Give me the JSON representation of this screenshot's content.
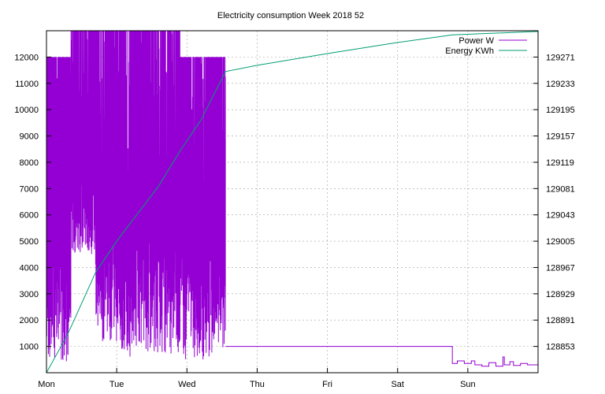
{
  "chart_data": {
    "type": "line",
    "title": "Electricity consumption Week 2018 52",
    "x_ticks": [
      "Mon",
      "Tue",
      "Wed",
      "Thu",
      "Fri",
      "Sat",
      "Sun"
    ],
    "xlim_days": [
      0,
      7
    ],
    "y_left": {
      "ylim": [
        0,
        13000
      ],
      "ticks": [
        1000,
        2000,
        3000,
        4000,
        5000,
        6000,
        7000,
        8000,
        9000,
        10000,
        11000,
        12000
      ]
    },
    "y_right": {
      "ylim": [
        128815,
        129309
      ],
      "ticks": [
        128853,
        128891,
        128929,
        128967,
        129005,
        129043,
        129081,
        129119,
        129157,
        129195,
        129233,
        129271
      ]
    },
    "grid": true,
    "legend_position": "top-right",
    "series": [
      {
        "name": "Power W",
        "axis": "left",
        "color": "#9400d3",
        "segments": [
          {
            "from_day": 0.0,
            "to_day": 0.35,
            "low": 400,
            "high": 12000
          },
          {
            "from_day": 0.35,
            "to_day": 0.7,
            "low": 4500,
            "high": 13000
          },
          {
            "from_day": 0.7,
            "to_day": 1.0,
            "low": 1200,
            "high": 13000
          },
          {
            "from_day": 1.0,
            "to_day": 1.35,
            "low": 600,
            "high": 13000
          },
          {
            "from_day": 1.35,
            "to_day": 1.9,
            "low": 700,
            "high": 13000
          },
          {
            "from_day": 1.9,
            "to_day": 2.55,
            "low": 500,
            "high": 12000
          }
        ],
        "points": [
          {
            "x": 2.55,
            "y": 1000
          },
          {
            "x": 5.78,
            "y": 1000
          },
          {
            "x": 5.78,
            "y": 350
          },
          {
            "x": 5.85,
            "y": 350
          },
          {
            "x": 5.85,
            "y": 450
          },
          {
            "x": 5.95,
            "y": 450
          },
          {
            "x": 5.95,
            "y": 350
          },
          {
            "x": 6.05,
            "y": 350
          },
          {
            "x": 6.05,
            "y": 450
          },
          {
            "x": 6.1,
            "y": 450
          },
          {
            "x": 6.1,
            "y": 300
          },
          {
            "x": 6.2,
            "y": 300
          },
          {
            "x": 6.2,
            "y": 250
          },
          {
            "x": 6.3,
            "y": 250
          },
          {
            "x": 6.3,
            "y": 380
          },
          {
            "x": 6.4,
            "y": 380
          },
          {
            "x": 6.4,
            "y": 250
          },
          {
            "x": 6.5,
            "y": 250
          },
          {
            "x": 6.5,
            "y": 600
          },
          {
            "x": 6.52,
            "y": 600
          },
          {
            "x": 6.52,
            "y": 300
          },
          {
            "x": 6.6,
            "y": 300
          },
          {
            "x": 6.6,
            "y": 420
          },
          {
            "x": 6.65,
            "y": 420
          },
          {
            "x": 6.65,
            "y": 280
          },
          {
            "x": 6.75,
            "y": 280
          },
          {
            "x": 6.75,
            "y": 350
          },
          {
            "x": 6.85,
            "y": 350
          },
          {
            "x": 6.85,
            "y": 300
          },
          {
            "x": 7.0,
            "y": 300
          }
        ]
      },
      {
        "name": "Energy KWh",
        "axis": "right",
        "color": "#009e73",
        "points": [
          {
            "x": 0.0,
            "y": 128815
          },
          {
            "x": 0.3,
            "y": 128870
          },
          {
            "x": 0.7,
            "y": 128960
          },
          {
            "x": 1.0,
            "y": 129005
          },
          {
            "x": 1.3,
            "y": 129045
          },
          {
            "x": 1.6,
            "y": 129085
          },
          {
            "x": 1.9,
            "y": 129135
          },
          {
            "x": 2.2,
            "y": 129180
          },
          {
            "x": 2.55,
            "y": 129250
          },
          {
            "x": 3.0,
            "y": 129259
          },
          {
            "x": 4.0,
            "y": 129276
          },
          {
            "x": 5.0,
            "y": 129292
          },
          {
            "x": 5.78,
            "y": 129303
          },
          {
            "x": 7.0,
            "y": 129308
          }
        ]
      }
    ]
  }
}
